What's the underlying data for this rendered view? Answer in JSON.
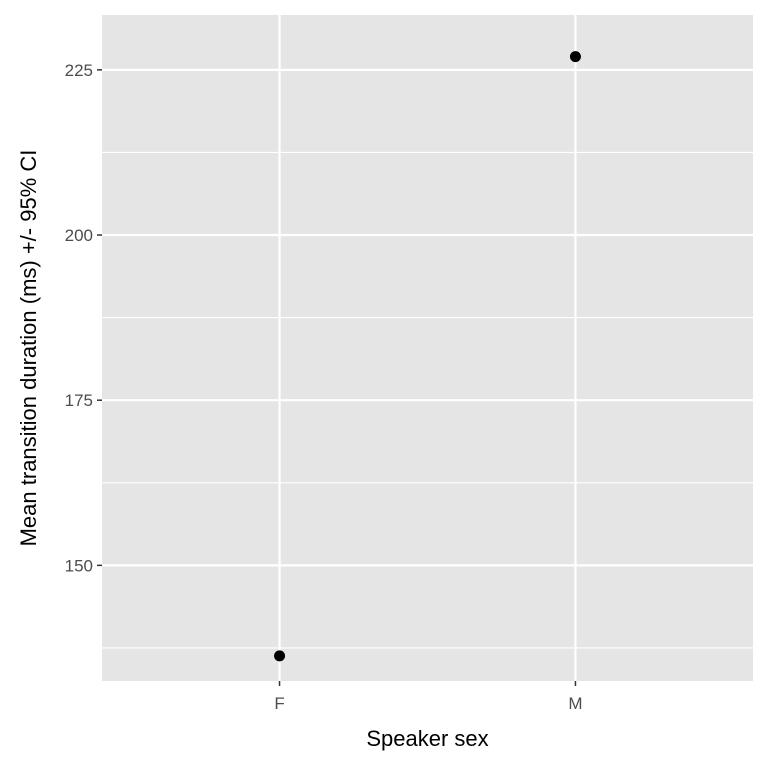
{
  "chart_data": {
    "type": "scatter",
    "title": "",
    "xlabel": "Speaker sex",
    "ylabel": "Mean transition duration (ms) +/- 95% CI",
    "categories": [
      "F",
      "M"
    ],
    "series": [
      {
        "values": [
          136.3,
          227.0
        ]
      }
    ],
    "ylim": [
      132.5,
      233.3
    ],
    "yticks": [
      150,
      175,
      200,
      225
    ],
    "grid": true,
    "legend": "none",
    "colors": {
      "panel": "#e5e5e5",
      "grid": "#ffffff",
      "point": "#000000",
      "tick_text": "#4d4d4d",
      "axis_title": "#000000"
    }
  }
}
